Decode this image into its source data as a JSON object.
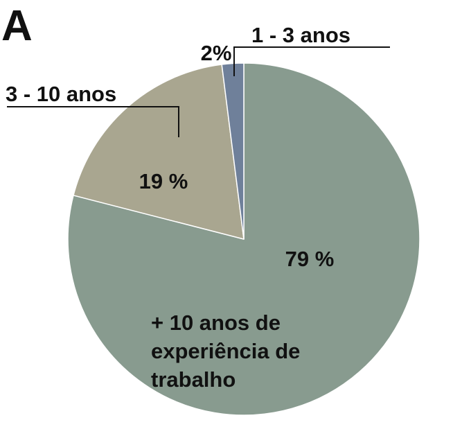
{
  "panel_label": "A",
  "chart_data": {
    "type": "pie",
    "start_angle_deg": 0,
    "direction": "clockwise",
    "slices": [
      {
        "value": 79,
        "value_label": "79 %",
        "category_label": [
          "+ 10 anos de",
          "experiência de",
          "trabalho"
        ],
        "color": "#889b8f"
      },
      {
        "value": 19,
        "value_label": "19 %",
        "category_label": [
          "3 - 10 anos"
        ],
        "color": "#a9a690"
      },
      {
        "value": 2,
        "value_label": "2%",
        "category_label": [
          "1 - 3 anos"
        ],
        "color": "#6f809a"
      }
    ],
    "slice_border_color": "#ffffff",
    "legend": "none"
  }
}
